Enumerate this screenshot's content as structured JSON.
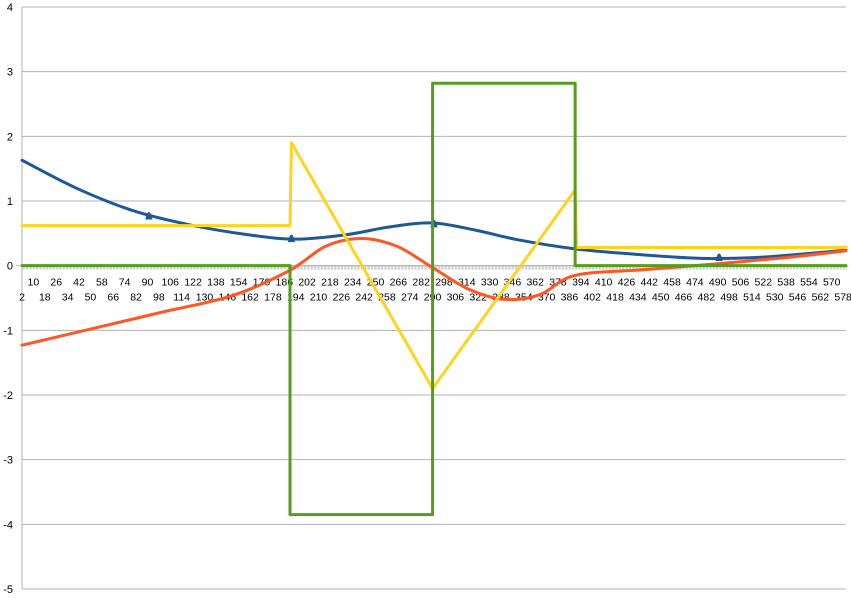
{
  "chart_data": {
    "type": "line",
    "title": "",
    "xlabel": "",
    "ylabel": "",
    "grid": true,
    "legend": "none",
    "ylim": [
      -5,
      4
    ],
    "yticks": [
      -5,
      -4,
      -3,
      -2,
      -1,
      0,
      1,
      2,
      3,
      4
    ],
    "ytick_labels": [
      "-5",
      "-4",
      "-3",
      "-2",
      "-1",
      "0",
      "1",
      "2",
      "3",
      "4"
    ],
    "x_range": [
      2,
      580
    ],
    "xtick_labels_row1": [
      "10",
      "26",
      "42",
      "58",
      "74",
      "90",
      "106",
      "122",
      "138",
      "154",
      "170",
      "186",
      "202",
      "218",
      "234",
      "250",
      "266",
      "282",
      "298",
      "314",
      "330",
      "346",
      "362",
      "378",
      "394",
      "410",
      "426",
      "442",
      "458",
      "474",
      "490",
      "506",
      "522",
      "538",
      "554",
      "570"
    ],
    "xtick_labels_row2": [
      "2",
      "18",
      "34",
      "50",
      "66",
      "82",
      "98",
      "114",
      "130",
      "146",
      "162",
      "178",
      "194",
      "210",
      "226",
      "242",
      "258",
      "274",
      "290",
      "306",
      "322",
      "338",
      "354",
      "370",
      "386",
      "402",
      "418",
      "434",
      "450",
      "466",
      "482",
      "498",
      "514",
      "530",
      "546",
      "562",
      "578"
    ],
    "series": [
      {
        "color": "#1f5897",
        "kind": "smooth",
        "x": [
          2,
          40,
          80,
          120,
          160,
          194,
          230,
          260,
          290,
          320,
          350,
          390,
          430,
          470,
          490,
          520,
          550,
          580
        ],
        "y": [
          1.63,
          1.2,
          0.85,
          0.63,
          0.48,
          0.41,
          0.48,
          0.6,
          0.66,
          0.55,
          0.4,
          0.26,
          0.18,
          0.12,
          0.11,
          0.13,
          0.18,
          0.24
        ],
        "spikes": [
          {
            "x": 91,
            "y": 0.86
          },
          {
            "x": 191,
            "y": 0.51
          },
          {
            "x": 291,
            "y": 0.74
          },
          {
            "x": 491,
            "y": 0.22
          }
        ]
      },
      {
        "color": "#ff5622",
        "kind": "smooth",
        "x": [
          2,
          50,
          100,
          150,
          190,
          215,
          240,
          265,
          290,
          315,
          340,
          365,
          390,
          440,
          490,
          540,
          580
        ],
        "y": [
          -1.23,
          -0.98,
          -0.72,
          -0.46,
          -0.07,
          0.3,
          0.42,
          0.3,
          -0.03,
          -0.36,
          -0.52,
          -0.45,
          -0.15,
          -0.06,
          0.03,
          0.13,
          0.23
        ]
      },
      {
        "color": "#ffd320",
        "kind": "linear",
        "x": [
          2,
          190,
          191,
          290,
          390,
          391,
          580
        ],
        "y": [
          0.62,
          0.62,
          1.9,
          -1.9,
          1.17,
          0.28,
          0.28
        ]
      },
      {
        "color": "#579d1c",
        "kind": "step",
        "x": [
          2,
          190,
          190,
          290,
          290,
          390,
          390,
          580
        ],
        "y": [
          0,
          0,
          -3.85,
          -3.85,
          2.82,
          2.82,
          0,
          0
        ]
      }
    ]
  }
}
